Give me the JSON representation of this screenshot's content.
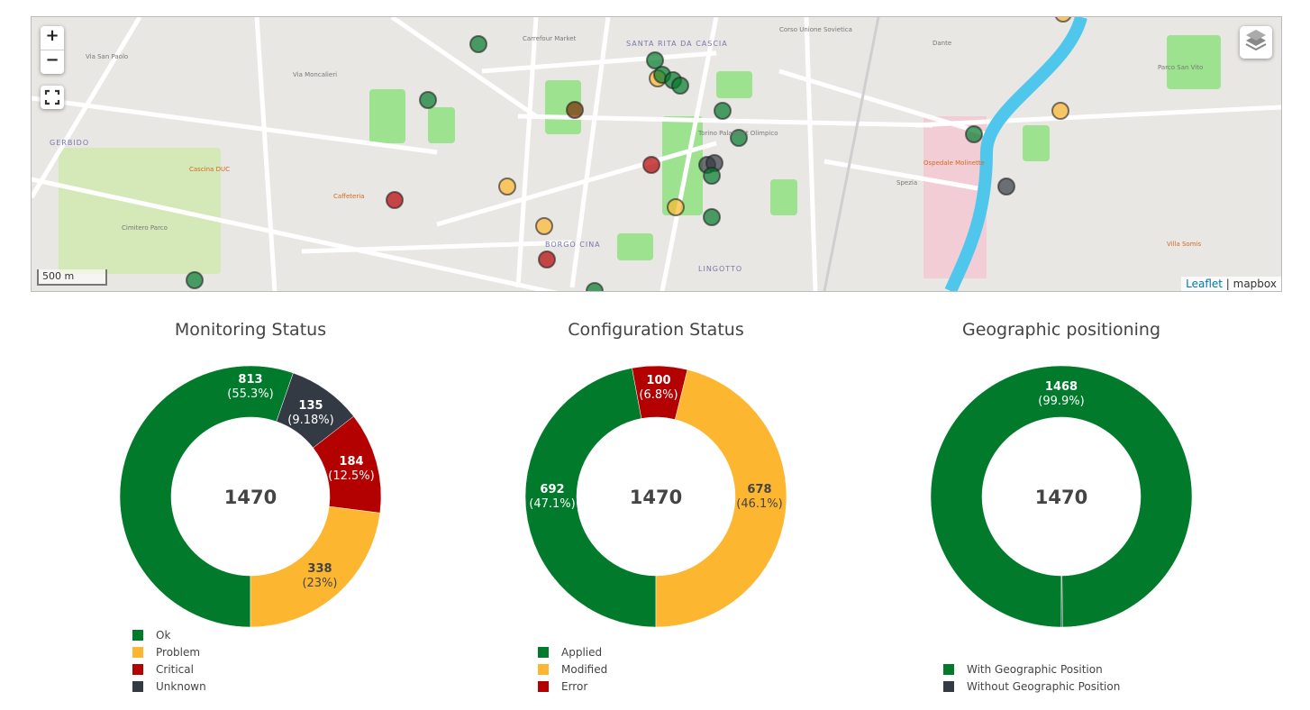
{
  "map": {
    "zoom_in": "+",
    "zoom_out": "−",
    "fullscreen_icon": "fullscreen-icon",
    "layers_icon": "layers-icon",
    "scale": "500 m",
    "attribution_link": "Leaflet",
    "attribution_sep": " | ",
    "attribution_provider": "mapbox",
    "labels": [
      {
        "text": "GERBIDO",
        "kind": "area"
      },
      {
        "text": "SANTA RITA DA CASCIA",
        "kind": "area"
      },
      {
        "text": "BORGO CINA",
        "kind": "area"
      },
      {
        "text": "LINGOTTO",
        "kind": "area"
      },
      {
        "text": "Via San Paolo",
        "kind": "street"
      },
      {
        "text": "Via Moncalieri",
        "kind": "street"
      },
      {
        "text": "Cascina DUC",
        "kind": "poi"
      },
      {
        "text": "Caffeteria",
        "kind": "poi"
      },
      {
        "text": "Cimitero Parco",
        "kind": "street"
      },
      {
        "text": "Carrefour Market",
        "kind": "street"
      },
      {
        "text": "Ospedale Molinette",
        "kind": "poi"
      },
      {
        "text": "Parco San Vito",
        "kind": "street"
      },
      {
        "text": "Torino Palasport Olimpico",
        "kind": "street"
      },
      {
        "text": "Corso Unione Sovietica",
        "kind": "street"
      },
      {
        "text": "Spezia",
        "kind": "street"
      },
      {
        "text": "Dante",
        "kind": "street"
      },
      {
        "text": "Villa Somis",
        "kind": "poi"
      }
    ]
  },
  "charts": [
    {
      "title": "Monitoring Status",
      "total": "1470",
      "slices": [
        {
          "label": "Ok",
          "value": 813,
          "percent": "(55.3%)",
          "color": "#017b2b"
        },
        {
          "label": "Problem",
          "value": 338,
          "percent": "(23%)",
          "color": "#fdb62f"
        },
        {
          "label": "Critical",
          "value": 184,
          "percent": "(12.5%)",
          "color": "#b30000"
        },
        {
          "label": "Unknown",
          "value": 135,
          "percent": "(9.18%)",
          "color": "#343a44"
        }
      ]
    },
    {
      "title": "Configuration Status",
      "total": "1470",
      "slices": [
        {
          "label": "Applied",
          "value": 692,
          "percent": "(47.1%)",
          "color": "#017b2b"
        },
        {
          "label": "Modified",
          "value": 678,
          "percent": "(46.1%)",
          "color": "#fdb62f"
        },
        {
          "label": "Error",
          "value": 100,
          "percent": "(6.8%)",
          "color": "#b30000"
        }
      ]
    },
    {
      "title": "Geographic positioning",
      "total": "1470",
      "slices": [
        {
          "label": "With Geographic Position",
          "value": 1468,
          "percent": "(99.9%)",
          "color": "#017b2b"
        },
        {
          "label": "Without Geographic Position",
          "value": 2,
          "percent": "",
          "color": "#343a44"
        }
      ]
    }
  ]
}
